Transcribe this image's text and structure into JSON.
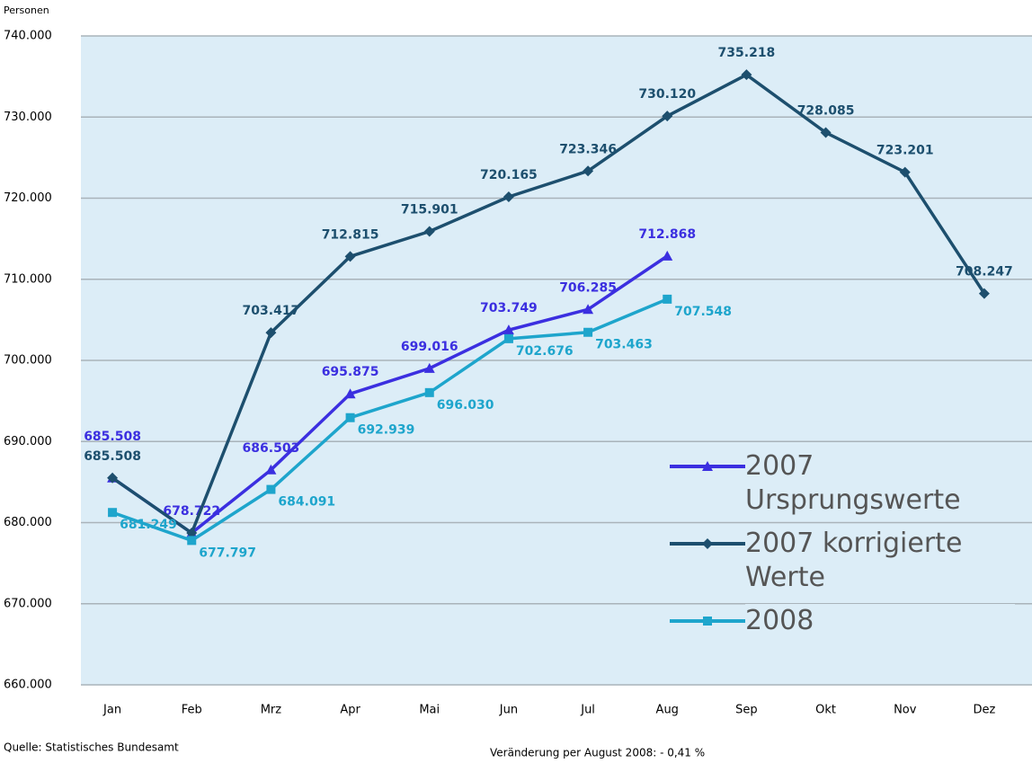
{
  "chart_data": {
    "type": "line",
    "y_axis_label": "Personen",
    "categories": [
      "Jan",
      "Feb",
      "Mrz",
      "Apr",
      "Mai",
      "Jun",
      "Jul",
      "Aug",
      "Sep",
      "Okt",
      "Nov",
      "Dez"
    ],
    "series": [
      {
        "name": "2007 Ursprungswerte",
        "color": "#3b2fe0",
        "marker": "triangle",
        "values": [
          685508,
          678722,
          686503,
          695875,
          699016,
          703749,
          706285,
          712868,
          null,
          null,
          null,
          null
        ],
        "value_labels": [
          "685.508",
          "678.722",
          "686.503",
          "695.875",
          "699.016",
          "703.749",
          "706.285",
          "712.868",
          null,
          null,
          null,
          null
        ]
      },
      {
        "name": "2007 korrigierte Werte",
        "color": "#1d4f6e",
        "marker": "diamond",
        "values": [
          685508,
          678722,
          703417,
          712815,
          715901,
          720165,
          723346,
          730120,
          735218,
          728085,
          723201,
          708247
        ],
        "value_labels": [
          "685.508",
          null,
          "703.417",
          "712.815",
          "715.901",
          "720.165",
          "723.346",
          "730.120",
          "735.218",
          "728.085",
          "723.201",
          "708.247"
        ]
      },
      {
        "name": "2008",
        "color": "#1ea5cc",
        "marker": "square",
        "values": [
          681249,
          677797,
          684091,
          692939,
          696030,
          702676,
          703463,
          707548,
          null,
          null,
          null,
          null
        ],
        "value_labels": [
          "681.249",
          "677.797",
          "684.091",
          "692.939",
          "696.030",
          "702.676",
          "703.463",
          "707.548",
          null,
          null,
          null,
          null
        ]
      }
    ],
    "ylim": [
      660000,
      740000
    ],
    "yticks": [
      {
        "value": 660000,
        "label": "660.000"
      },
      {
        "value": 670000,
        "label": "670.000"
      },
      {
        "value": 680000,
        "label": "680.000"
      },
      {
        "value": 690000,
        "label": "690.000"
      },
      {
        "value": 700000,
        "label": "700.000"
      },
      {
        "value": 710000,
        "label": "710.000"
      },
      {
        "value": 720000,
        "label": "720.000"
      },
      {
        "value": 730000,
        "label": "730.000"
      },
      {
        "value": 740000,
        "label": "740.000"
      }
    ],
    "grid": true,
    "source": "Quelle: Statistisches Bundesamt",
    "note": "Veränderung per August 2008:  - 0,41 %"
  }
}
